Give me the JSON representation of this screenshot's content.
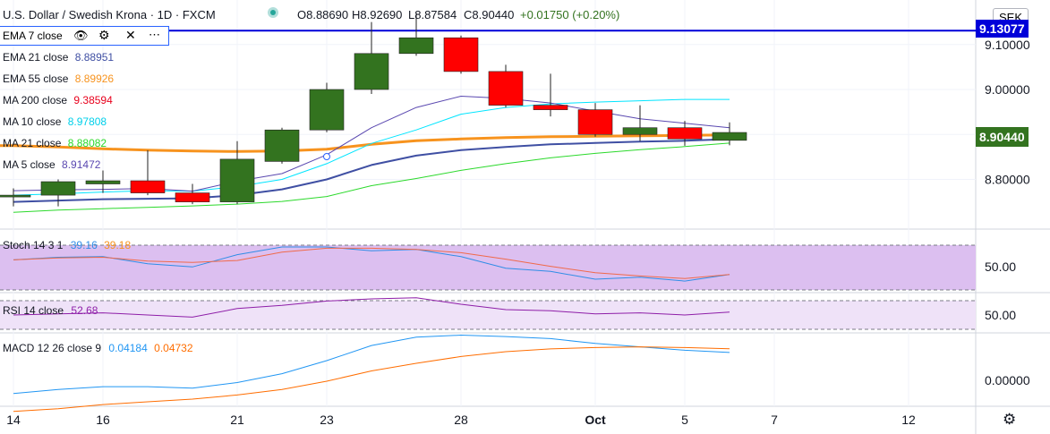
{
  "header": {
    "title": "U.S. Dollar / Swedish Krona · 1D · FXCM",
    "open": "O8.88690",
    "high": "H8.92690",
    "low": "L8.87584",
    "close": "C8.90440",
    "change": "+0.01750 (+0.20%)",
    "currency": "SEK"
  },
  "colors": {
    "bull": "#33731f",
    "bear": "#ff0000",
    "ema7": "#2962ff",
    "ema21": "#3f4fa3",
    "ema55": "#f7931e",
    "ma200": "#e8001c",
    "ma10": "#00e5ff",
    "ma21": "#2bd92b",
    "ma5": "#5a48b0",
    "stoch_k": "#2f8de6",
    "stoch_d": "#f06a4a",
    "rsi": "#8e1ea8",
    "macd": "#2196f3",
    "macd_signal": "#ff6d00"
  },
  "legends": [
    {
      "name": "EMA 7 close",
      "value": ""
    },
    {
      "name": "EMA 21 close",
      "value": "8.88951"
    },
    {
      "name": "EMA 55 close",
      "value": "8.89926"
    },
    {
      "name": "MA 200 close",
      "value": "9.38594"
    },
    {
      "name": "MA 10 close",
      "value": "8.97808"
    },
    {
      "name": "MA 21 close",
      "value": "8.88082"
    },
    {
      "name": "MA 5 close",
      "value": "8.91472"
    }
  ],
  "panes": {
    "stoch": {
      "label": "Stoch 14 3 1",
      "k": "39.16",
      "d": "39.18",
      "axis": "50.00"
    },
    "rsi": {
      "label": "RSI 14 close",
      "value": "52.68",
      "axis": "50.00"
    },
    "macd": {
      "label": "MACD 12 26 close 9",
      "macd": "0.04184",
      "signal": "0.04732",
      "axis": "0.00000"
    }
  },
  "price_axis": {
    "labels": [
      "9.10000",
      "9.00000",
      "8.80000"
    ],
    "last_price": "8.90440",
    "line_price": "9.13077"
  },
  "time_axis": {
    "labels": [
      "14",
      "16",
      "21",
      "23",
      "28",
      "Oct",
      "5",
      "7",
      "12"
    ]
  },
  "chart_data": {
    "type": "candlestick",
    "symbol": "USD/SEK",
    "interval": "1D",
    "ylim": [
      8.72,
      9.19
    ],
    "horizontal_line": 9.13077,
    "candles": [
      {
        "date": "Sep 14",
        "open": 8.765,
        "high": 8.78,
        "low": 8.74,
        "close": 8.765
      },
      {
        "date": "Sep 15",
        "open": 8.765,
        "high": 8.8,
        "low": 8.74,
        "close": 8.795
      },
      {
        "date": "Sep 16",
        "open": 8.79,
        "high": 8.82,
        "low": 8.77,
        "close": 8.797
      },
      {
        "date": "Sep 17",
        "open": 8.797,
        "high": 8.865,
        "low": 8.765,
        "close": 8.77
      },
      {
        "date": "Sep 18",
        "open": 8.77,
        "high": 8.79,
        "low": 8.745,
        "close": 8.75
      },
      {
        "date": "Sep 21",
        "open": 8.75,
        "high": 8.885,
        "low": 8.745,
        "close": 8.845
      },
      {
        "date": "Sep 22",
        "open": 8.84,
        "high": 8.915,
        "low": 8.835,
        "close": 8.91
      },
      {
        "date": "Sep 23",
        "open": 8.91,
        "high": 9.015,
        "low": 8.905,
        "close": 9.0
      },
      {
        "date": "Sep 24",
        "open": 9.0,
        "high": 9.15,
        "low": 8.99,
        "close": 9.08
      },
      {
        "date": "Sep 25",
        "open": 9.08,
        "high": 9.17,
        "low": 9.075,
        "close": 9.115
      },
      {
        "date": "Sep 28",
        "open": 9.115,
        "high": 9.12,
        "low": 9.035,
        "close": 9.04
      },
      {
        "date": "Sep 29",
        "open": 9.04,
        "high": 9.055,
        "low": 8.96,
        "close": 8.965
      },
      {
        "date": "Sep 30",
        "open": 8.965,
        "high": 9.035,
        "low": 8.94,
        "close": 8.955
      },
      {
        "date": "Oct 1",
        "open": 8.955,
        "high": 8.97,
        "low": 8.895,
        "close": 8.9
      },
      {
        "date": "Oct 2",
        "open": 8.9,
        "high": 8.965,
        "low": 8.885,
        "close": 8.915
      },
      {
        "date": "Oct 5",
        "open": 8.915,
        "high": 8.93,
        "low": 8.875,
        "close": 8.89
      },
      {
        "date": "Oct 6",
        "open": 8.8869,
        "high": 8.9269,
        "low": 8.87584,
        "close": 8.9044
      }
    ],
    "moving_averages": [
      {
        "name": "EMA 55 close",
        "values": [
          8.875,
          8.872,
          8.868,
          8.865,
          8.863,
          8.862,
          8.863,
          8.867,
          8.878,
          8.886,
          8.89,
          8.893,
          8.895,
          8.896,
          8.897,
          8.898,
          8.899
        ]
      },
      {
        "name": "EMA 21 close",
        "values": [
          8.75,
          8.753,
          8.756,
          8.757,
          8.758,
          8.765,
          8.778,
          8.8,
          8.832,
          8.853,
          8.865,
          8.872,
          8.878,
          8.881,
          8.884,
          8.886,
          8.8895
        ]
      },
      {
        "name": "MA 21 close",
        "values": [
          8.727,
          8.732,
          8.735,
          8.738,
          8.741,
          8.745,
          8.751,
          8.762,
          8.786,
          8.802,
          8.82,
          8.835,
          8.848,
          8.858,
          8.866,
          8.873,
          8.8808
        ]
      },
      {
        "name": "MA 10 close",
        "values": [
          8.765,
          8.768,
          8.772,
          8.775,
          8.774,
          8.784,
          8.8,
          8.835,
          8.88,
          8.91,
          8.945,
          8.96,
          8.968,
          8.972,
          8.975,
          8.978,
          8.978
        ]
      },
      {
        "name": "MA 5 close",
        "values": [
          8.775,
          8.777,
          8.778,
          8.78,
          8.774,
          8.796,
          8.813,
          8.855,
          8.915,
          8.96,
          8.985,
          8.98,
          8.97,
          8.952,
          8.935,
          8.925,
          8.915
        ]
      }
    ],
    "stoch": {
      "k": [
        62,
        66,
        67,
        56,
        51,
        70,
        82,
        82,
        76,
        78,
        67,
        49,
        44,
        32,
        35,
        29,
        39.16
      ],
      "d": [
        62,
        65,
        66,
        60,
        58,
        61,
        74,
        80,
        80,
        78,
        73,
        63,
        52,
        42,
        37,
        33,
        39.18
      ]
    },
    "rsi": [
      50,
      51,
      52,
      50,
      48,
      56,
      59,
      63,
      65,
      66,
      60,
      55,
      54,
      51,
      52,
      50,
      52.68
    ],
    "macd": {
      "macd": [
        -0.018,
        -0.012,
        -0.008,
        -0.008,
        -0.01,
        -0.002,
        0.011,
        0.03,
        0.052,
        0.064,
        0.067,
        0.065,
        0.062,
        0.055,
        0.05,
        0.045,
        0.04184
      ],
      "signal": [
        -0.044,
        -0.04,
        -0.034,
        -0.03,
        -0.026,
        -0.02,
        -0.012,
        0.0,
        0.015,
        0.026,
        0.036,
        0.043,
        0.047,
        0.049,
        0.05,
        0.049,
        0.04732
      ]
    }
  }
}
